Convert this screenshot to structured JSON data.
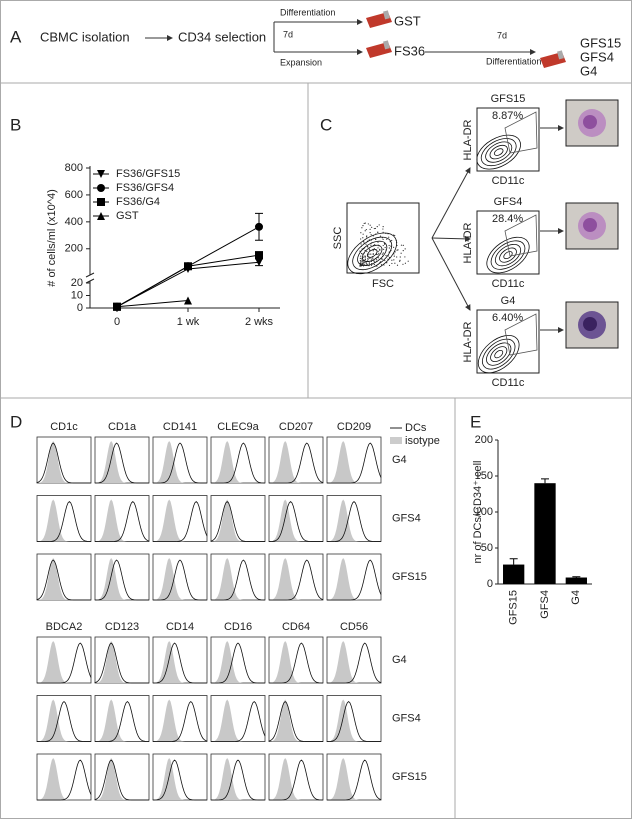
{
  "panels": {
    "A": {
      "label": "A",
      "steps": [
        "CBMC isolation",
        "CD34 selection"
      ],
      "branch_1": {
        "label": "Differentiation",
        "product": "GST"
      },
      "time_1": "7d",
      "branch_2": {
        "label": "Expansion",
        "product": "FS36"
      },
      "time_2": "7d",
      "step_2": "Differentiation",
      "products": [
        "GFS15",
        "GFS4",
        "G4"
      ]
    },
    "B": {
      "label": "B"
    },
    "C": {
      "label": "C",
      "gate_x_label": "FSC",
      "gate_y_label": "SSC",
      "x_label": "CD11c",
      "y_label": "HLA-DR",
      "subsets": [
        {
          "name": "GFS15",
          "percent": "8.87%"
        },
        {
          "name": "GFS4",
          "percent": "28.4%"
        },
        {
          "name": "G4",
          "percent": "6.40%"
        }
      ]
    },
    "D": {
      "label": "D",
      "legend": [
        "DCs",
        "isotype"
      ],
      "groups": [
        {
          "markers": [
            "CD1c",
            "CD1a",
            "CD141",
            "CLEC9a",
            "CD207",
            "CD209"
          ],
          "rows": [
            "G4",
            "GFS4",
            "GFS15"
          ]
        },
        {
          "markers": [
            "BDCA2",
            "CD123",
            "CD14",
            "CD16",
            "CD64",
            "CD56"
          ],
          "rows": [
            "G4",
            "GFS4",
            "GFS15"
          ]
        }
      ]
    },
    "E": {
      "label": "E"
    }
  },
  "chart_data": [
    {
      "type": "line",
      "y_label": "# of cells/ml (x10^4)",
      "categories": [
        "0",
        "1 wk",
        "2 wks"
      ],
      "y_segments": [
        {
          "ylim": [
            0,
            20
          ],
          "yticks": [
            0,
            10,
            20
          ]
        },
        {
          "ylim": [
            20,
            800
          ],
          "yticks": [
            200,
            400,
            600,
            800
          ]
        }
      ],
      "legend": "upper-left",
      "series": [
        {
          "name": "FS36/GFS15",
          "marker": "triangle-down",
          "color": "#000000",
          "values": [
            1,
            50,
            100
          ],
          "errors": [
            null,
            null,
            25
          ]
        },
        {
          "name": "FS36/GFS4",
          "marker": "circle",
          "color": "#000000",
          "values": [
            1,
            70,
            363
          ],
          "errors": [
            null,
            null,
            100
          ]
        },
        {
          "name": "FS36/G4",
          "marker": "square",
          "color": "#000000",
          "values": [
            1,
            70,
            153
          ],
          "errors": [
            null,
            null,
            15
          ]
        },
        {
          "name": "GST",
          "marker": "triangle-up",
          "color": "#000000",
          "values": [
            1,
            6,
            null
          ],
          "errors": [
            null,
            null,
            null
          ]
        }
      ]
    },
    {
      "type": "bar",
      "y_label": "nr of DCs/CD34⁺ cell",
      "categories": [
        "GFS15",
        "GFS4",
        "G4"
      ],
      "values": [
        27,
        140,
        9
      ],
      "errors": [
        8,
        6,
        1
      ],
      "color": "#000000",
      "ylim": [
        0,
        200
      ],
      "yticks": [
        0,
        50,
        100,
        150,
        200
      ]
    }
  ]
}
